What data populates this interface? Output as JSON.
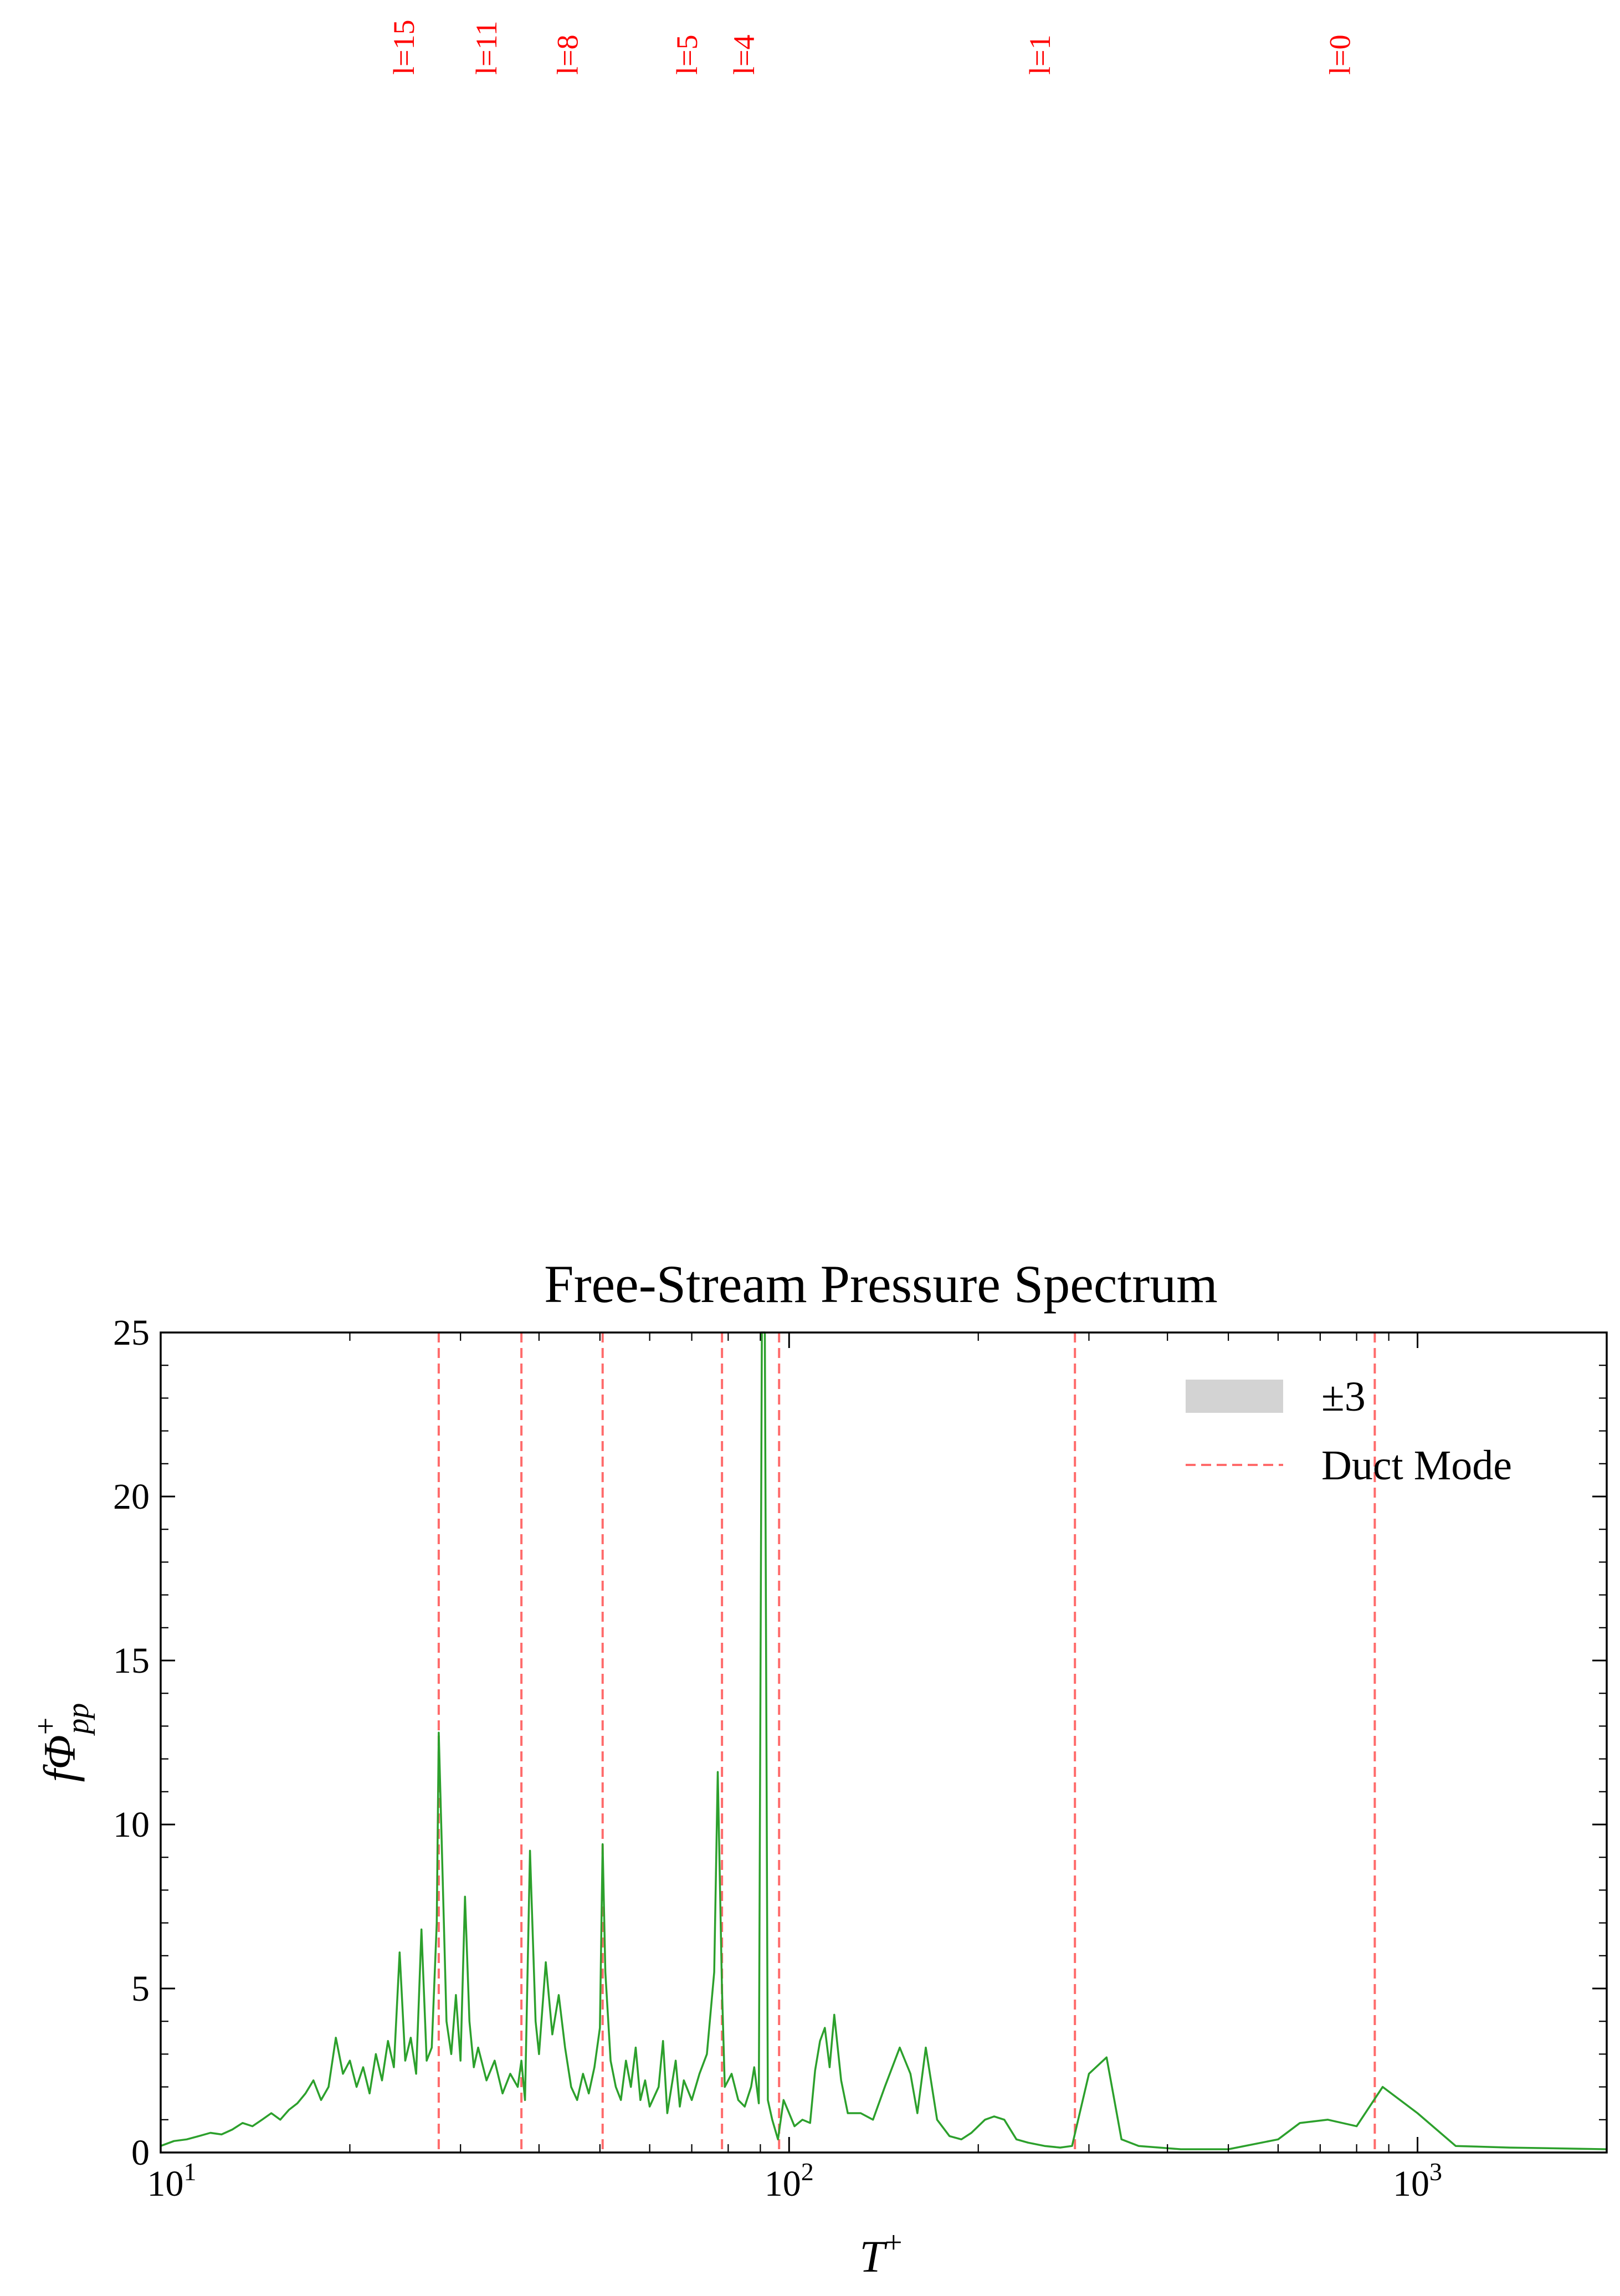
{
  "chart_data": {
    "type": "line",
    "title": "Free-Stream Pressure Spectrum",
    "xlabel": "T",
    "xlabel_sup": "+",
    "ylabel": "fΦ",
    "ylabel_sup": "+",
    "ylabel_sub": "pp",
    "xscale": "log",
    "xlim": [
      10,
      2000
    ],
    "ylim": [
      0,
      25
    ],
    "yticks": [
      0,
      5,
      10,
      15,
      20,
      25
    ],
    "xticks": [
      {
        "value": 10,
        "base": "10",
        "exp": "1"
      },
      {
        "value": 100,
        "base": "10",
        "exp": "2"
      },
      {
        "value": 1000,
        "base": "10",
        "exp": "3"
      }
    ],
    "grid": false,
    "legend_position": "top-right",
    "legend": [
      {
        "label": "±3",
        "kind": "band",
        "color": "#d3d3d3"
      },
      {
        "label": "Duct Mode",
        "kind": "dashed",
        "color": "#ff6b6b"
      }
    ],
    "line_color": "#2ca02c",
    "mode_color": "#ff6b6b",
    "mode_label_color": "#ff0000",
    "duct_modes": [
      {
        "label": "l=15",
        "x": 27.7
      },
      {
        "label": "l=11",
        "x": 37.5
      },
      {
        "label": "l=8",
        "x": 50.5
      },
      {
        "label": "l=5",
        "x": 78.2
      },
      {
        "label": "l=4",
        "x": 96.4
      },
      {
        "label": "l=1",
        "x": 285
      },
      {
        "label": "l=0",
        "x": 855
      }
    ],
    "series": [
      {
        "values": [
          [
            10,
            0.2
          ],
          [
            10.5,
            0.35
          ],
          [
            11,
            0.4
          ],
          [
            11.5,
            0.5
          ],
          [
            12,
            0.6
          ],
          [
            12.5,
            0.55
          ],
          [
            13,
            0.7
          ],
          [
            13.5,
            0.9
          ],
          [
            14,
            0.8
          ],
          [
            14.5,
            1.0
          ],
          [
            15,
            1.2
          ],
          [
            15.5,
            1.0
          ],
          [
            16,
            1.3
          ],
          [
            16.5,
            1.5
          ],
          [
            17,
            1.8
          ],
          [
            17.5,
            2.2
          ],
          [
            18,
            1.6
          ],
          [
            18.5,
            2.0
          ],
          [
            19,
            3.5
          ],
          [
            19.5,
            2.4
          ],
          [
            20,
            2.8
          ],
          [
            20.5,
            2.0
          ],
          [
            21,
            2.6
          ],
          [
            21.5,
            1.8
          ],
          [
            22,
            3.0
          ],
          [
            22.5,
            2.2
          ],
          [
            23,
            3.4
          ],
          [
            23.5,
            2.6
          ],
          [
            24,
            6.1
          ],
          [
            24.5,
            2.8
          ],
          [
            25,
            3.5
          ],
          [
            25.5,
            2.4
          ],
          [
            26,
            6.8
          ],
          [
            26.5,
            2.8
          ],
          [
            27,
            3.2
          ],
          [
            27.5,
            7.0
          ],
          [
            27.7,
            12.8
          ],
          [
            28,
            9.5
          ],
          [
            28.5,
            4.0
          ],
          [
            29,
            3.0
          ],
          [
            29.5,
            4.8
          ],
          [
            30,
            2.8
          ],
          [
            30.5,
            7.8
          ],
          [
            31,
            4.0
          ],
          [
            31.5,
            2.6
          ],
          [
            32,
            3.2
          ],
          [
            33,
            2.2
          ],
          [
            34,
            2.8
          ],
          [
            35,
            1.8
          ],
          [
            36,
            2.4
          ],
          [
            37,
            2.0
          ],
          [
            37.5,
            2.8
          ],
          [
            38,
            1.6
          ],
          [
            38.7,
            9.2
          ],
          [
            39.5,
            4.0
          ],
          [
            40,
            3.0
          ],
          [
            41,
            5.8
          ],
          [
            42,
            3.6
          ],
          [
            43,
            4.8
          ],
          [
            44,
            3.2
          ],
          [
            45,
            2.0
          ],
          [
            46,
            1.6
          ],
          [
            47,
            2.4
          ],
          [
            48,
            1.8
          ],
          [
            49,
            2.6
          ],
          [
            50,
            3.8
          ],
          [
            50.5,
            9.4
          ],
          [
            51,
            5.5
          ],
          [
            52,
            2.8
          ],
          [
            53,
            2.0
          ],
          [
            54,
            1.6
          ],
          [
            55,
            2.8
          ],
          [
            56,
            2.0
          ],
          [
            57,
            3.2
          ],
          [
            58,
            1.6
          ],
          [
            59,
            2.2
          ],
          [
            60,
            1.4
          ],
          [
            62,
            2.0
          ],
          [
            63,
            3.4
          ],
          [
            64,
            1.2
          ],
          [
            66,
            2.8
          ],
          [
            67,
            1.4
          ],
          [
            68,
            2.2
          ],
          [
            70,
            1.6
          ],
          [
            72,
            2.4
          ],
          [
            74,
            3.0
          ],
          [
            76,
            5.5
          ],
          [
            77,
            11.6
          ],
          [
            78.2,
            5.0
          ],
          [
            79,
            2.0
          ],
          [
            81,
            2.4
          ],
          [
            83,
            1.6
          ],
          [
            85,
            1.4
          ],
          [
            87,
            2.0
          ],
          [
            88,
            2.6
          ],
          [
            89.5,
            1.5
          ],
          [
            90.5,
            25.0
          ],
          [
            91.5,
            25.0
          ],
          [
            92.5,
            1.6
          ],
          [
            94,
            1.0
          ],
          [
            96,
            0.4
          ],
          [
            98,
            1.6
          ],
          [
            100,
            1.2
          ],
          [
            102,
            0.8
          ],
          [
            105,
            1.0
          ],
          [
            108,
            0.9
          ],
          [
            110,
            2.5
          ],
          [
            112,
            3.4
          ],
          [
            114,
            3.8
          ],
          [
            116,
            2.6
          ],
          [
            118,
            4.2
          ],
          [
            121,
            2.2
          ],
          [
            124,
            1.2
          ],
          [
            130,
            1.2
          ],
          [
            136,
            1.0
          ],
          [
            142,
            2.0
          ],
          [
            150,
            3.2
          ],
          [
            156,
            2.4
          ],
          [
            160,
            1.2
          ],
          [
            165,
            3.2
          ],
          [
            172,
            1.0
          ],
          [
            180,
            0.5
          ],
          [
            188,
            0.4
          ],
          [
            195,
            0.6
          ],
          [
            205,
            1.0
          ],
          [
            212,
            1.1
          ],
          [
            220,
            1.0
          ],
          [
            230,
            0.4
          ],
          [
            240,
            0.3
          ],
          [
            255,
            0.2
          ],
          [
            270,
            0.15
          ],
          [
            282,
            0.2
          ],
          [
            290,
            1.2
          ],
          [
            300,
            2.4
          ],
          [
            320,
            2.9
          ],
          [
            338,
            0.4
          ],
          [
            360,
            0.2
          ],
          [
            420,
            0.1
          ],
          [
            500,
            0.1
          ],
          [
            600,
            0.4
          ],
          [
            650,
            0.9
          ],
          [
            720,
            1.0
          ],
          [
            800,
            0.8
          ],
          [
            880,
            2.0
          ],
          [
            1000,
            1.2
          ],
          [
            1150,
            0.2
          ],
          [
            1400,
            0.15
          ],
          [
            2000,
            0.1
          ]
        ]
      }
    ]
  }
}
